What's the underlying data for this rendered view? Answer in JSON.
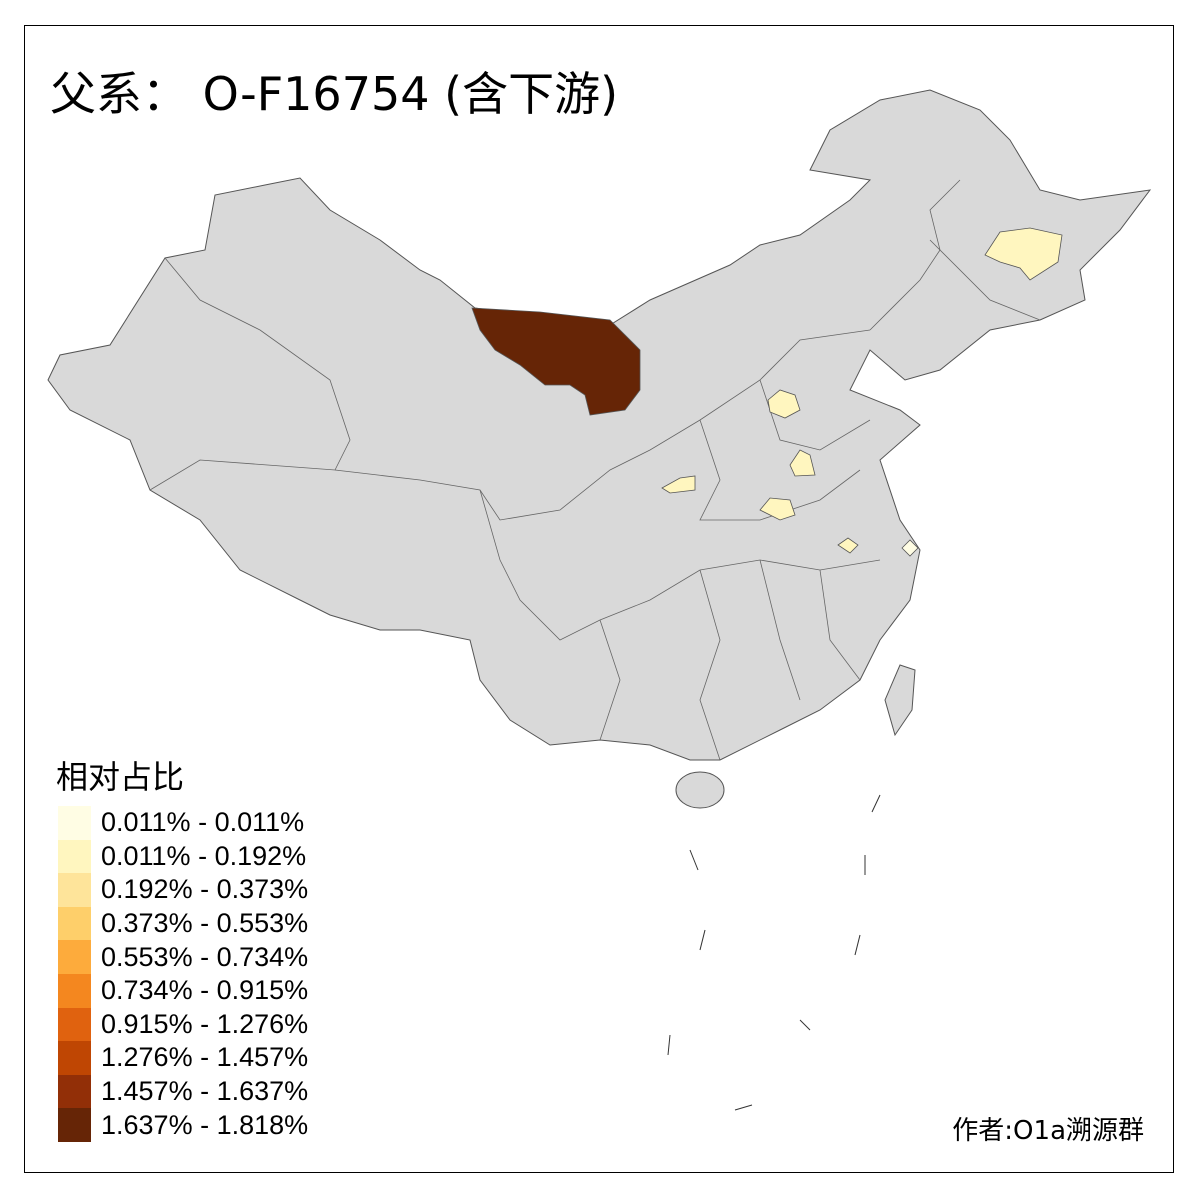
{
  "title": "父系： O-F16754 (含下游)",
  "legend": {
    "title": "相对占比",
    "items": [
      {
        "label": "0.011% - 0.011%",
        "color": "#FFFDE4"
      },
      {
        "label": "0.011% - 0.192%",
        "color": "#FFF6BF"
      },
      {
        "label": "0.192% - 0.373%",
        "color": "#FEE49A"
      },
      {
        "label": "0.373% - 0.553%",
        "color": "#FECF6A"
      },
      {
        "label": "0.553% - 0.734%",
        "color": "#FDAB3C"
      },
      {
        "label": "0.734% - 0.915%",
        "color": "#F4871F"
      },
      {
        "label": "0.915% - 1.276%",
        "color": "#E0620F"
      },
      {
        "label": "1.276% - 1.457%",
        "color": "#BF4603"
      },
      {
        "label": "1.457% - 1.637%",
        "color": "#922F07"
      },
      {
        "label": "1.637% - 1.818%",
        "color": "#662506"
      }
    ]
  },
  "map": {
    "base_color": "#D9D9D9",
    "border_color": "#555555",
    "highlighted_regions": [
      {
        "region": "northwest-dark-region",
        "color": "#662506"
      },
      {
        "region": "heilongjiang-region",
        "color": "#FFF6BF"
      },
      {
        "region": "shanxi-region",
        "color": "#FFF6BF"
      },
      {
        "region": "hebei-shandong-region",
        "color": "#FFF6BF"
      },
      {
        "region": "shaanxi-region",
        "color": "#FFF6BF"
      },
      {
        "region": "henan-region",
        "color": "#FFF6BF"
      },
      {
        "region": "anhui-region",
        "color": "#FFF6BF"
      },
      {
        "region": "shanghai-region",
        "color": "#FFFDE4"
      }
    ]
  },
  "author": "作者:O1a溯源群"
}
